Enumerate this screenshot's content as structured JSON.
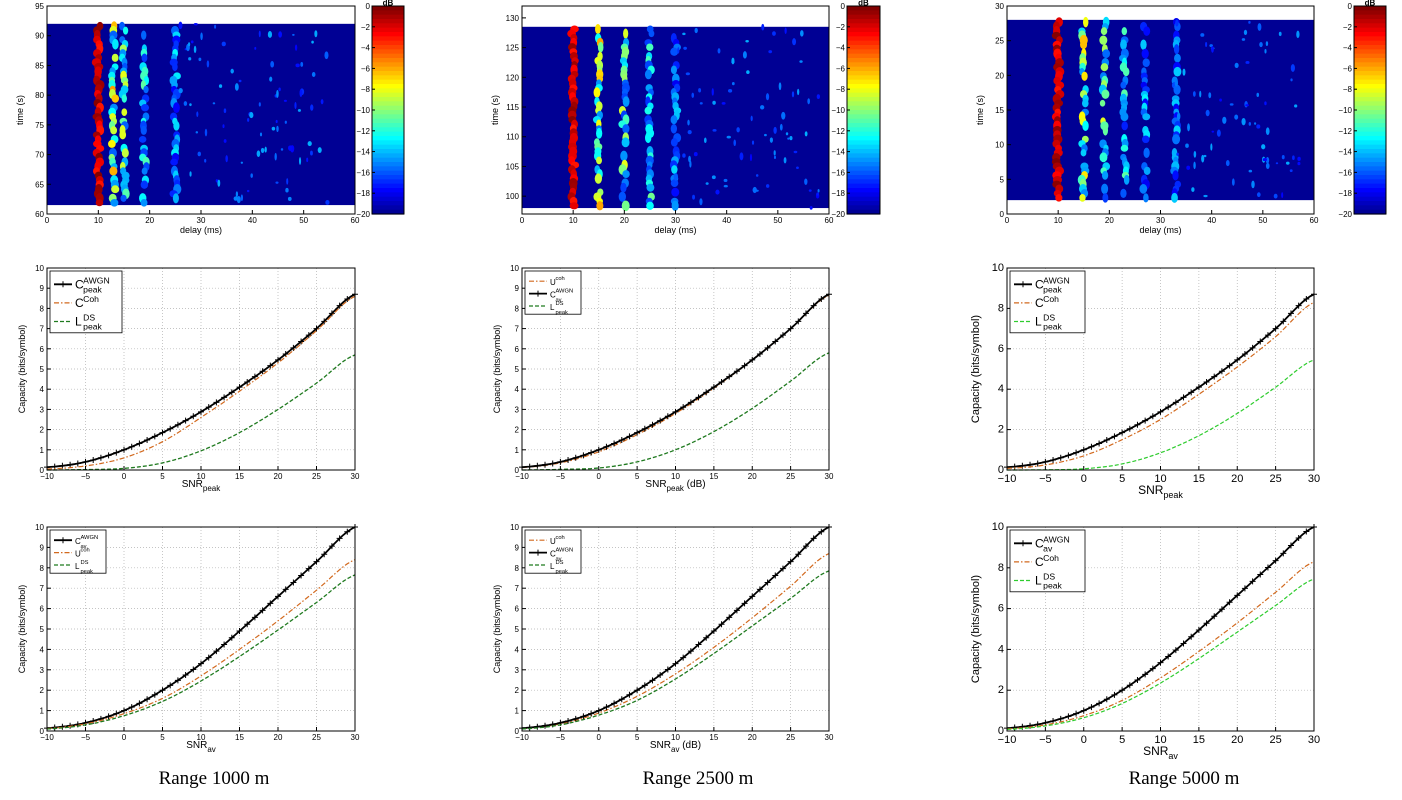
{
  "captions": [
    "Range 1000 m",
    "Range 2500 m",
    "Range 5000 m"
  ],
  "colors": {
    "black": "#000000",
    "orange": "#d2691e",
    "darkgreen": "#1f7a1f",
    "green": "#2ecc2e",
    "grid": "#b0b0b0"
  },
  "chart_data": [
    {
      "type": "heatmap",
      "panel": "r1c1",
      "xlabel": "delay (ms)",
      "ylabel": "time (s)",
      "xlim": [
        0,
        60
      ],
      "ylim": [
        60,
        95
      ],
      "xticks": [
        0,
        10,
        20,
        30,
        40,
        50,
        60
      ],
      "yticks": [
        60,
        65,
        70,
        75,
        80,
        85,
        90,
        95
      ],
      "colorbar_label": "dB",
      "colorbar_range": [
        -20,
        0
      ],
      "colorbar_ticks": [
        0,
        -2,
        -4,
        -6,
        -8,
        -10,
        -12,
        -14,
        -16,
        -18,
        -20
      ],
      "data_extent": {
        "delay": [
          0,
          60
        ],
        "time": [
          61.5,
          92
        ]
      },
      "arrivals_ms": [
        10,
        13,
        15,
        19,
        25
      ]
    },
    {
      "type": "heatmap",
      "panel": "r1c2",
      "xlabel": "delay (ms)",
      "ylabel": "time (s)",
      "xlim": [
        0,
        60
      ],
      "ylim": [
        97,
        132
      ],
      "xticks": [
        0,
        10,
        20,
        30,
        40,
        50,
        60
      ],
      "yticks": [
        100,
        105,
        110,
        115,
        120,
        125,
        130
      ],
      "colorbar_label": "dB",
      "colorbar_range": [
        -20,
        0
      ],
      "colorbar_ticks": [
        0,
        -2,
        -4,
        -6,
        -8,
        -10,
        -12,
        -14,
        -16,
        -18,
        -20
      ],
      "data_extent": {
        "delay": [
          0,
          60
        ],
        "time": [
          98,
          128.5
        ]
      },
      "arrivals_ms": [
        10,
        15,
        20,
        25,
        30
      ]
    },
    {
      "type": "heatmap",
      "panel": "r1c3",
      "xlabel": "delay (ms)",
      "ylabel": "time (s)",
      "xlim": [
        0,
        60
      ],
      "ylim": [
        0,
        30
      ],
      "xticks": [
        0,
        10,
        20,
        30,
        40,
        50,
        60
      ],
      "yticks": [
        0,
        5,
        10,
        15,
        20,
        25,
        30
      ],
      "colorbar_label": "dB",
      "colorbar_range": [
        -20,
        0
      ],
      "colorbar_ticks": [
        0,
        -2,
        -4,
        -6,
        -8,
        -10,
        -12,
        -14,
        -16,
        -18,
        -20
      ],
      "data_extent": {
        "delay": [
          0,
          60
        ],
        "time": [
          2,
          28
        ]
      },
      "arrivals_ms": [
        10,
        15,
        19,
        23,
        27,
        33
      ]
    },
    {
      "type": "line",
      "panel": "r2c1",
      "xlabel": "SNR",
      "xlabel_sub": "peak",
      "ylabel": "Capacity (bits/symbol)",
      "xlim": [
        -10,
        30
      ],
      "ylim": [
        0,
        10
      ],
      "xticks": [
        -10,
        -5,
        0,
        5,
        10,
        15,
        20,
        25,
        30
      ],
      "yticks": [
        0,
        1,
        2,
        3,
        4,
        5,
        6,
        7,
        8,
        9,
        10
      ],
      "x": [
        -10,
        -5,
        0,
        5,
        10,
        15,
        20,
        25,
        30
      ],
      "series": [
        {
          "name": "C",
          "sup": "AWGN",
          "sub": "peak",
          "style": "black-plus",
          "values": [
            0.14,
            0.4,
            1.0,
            1.85,
            2.88,
            4.1,
            5.45,
            7.0,
            8.7
          ]
        },
        {
          "name": "C",
          "sup": "Coh",
          "sub": "",
          "style": "orange-dashdot",
          "values": [
            0.05,
            0.2,
            0.6,
            1.4,
            2.6,
            3.9,
            5.3,
            6.9,
            8.6
          ]
        },
        {
          "name": "L",
          "sup": "DS",
          "sub": "peak",
          "style": "darkgreen-dashed",
          "values": [
            0.0,
            0.02,
            0.08,
            0.35,
            0.95,
            1.85,
            3.0,
            4.3,
            5.7
          ]
        }
      ]
    },
    {
      "type": "line",
      "panel": "r2c2",
      "xlabel": "SNR",
      "xlabel_sub": "peak",
      "xlabel_suffix": " (dB)",
      "ylabel": "Capacity (bits/symbol)",
      "xlim": [
        -10,
        30
      ],
      "ylim": [
        0,
        10
      ],
      "xticks": [
        -10,
        -5,
        0,
        5,
        10,
        15,
        20,
        25,
        30
      ],
      "yticks": [
        0,
        1,
        2,
        3,
        4,
        5,
        6,
        7,
        8,
        9,
        10
      ],
      "x": [
        -10,
        -5,
        0,
        5,
        10,
        15,
        20,
        25,
        30
      ],
      "series": [
        {
          "name": "U",
          "sup": "coh",
          "sub": "",
          "style": "orange-dashdot",
          "values": [
            0.12,
            0.35,
            0.9,
            1.75,
            2.8,
            4.05,
            5.45,
            7.0,
            8.65
          ]
        },
        {
          "name": "C",
          "sup": "AWGN",
          "sub": "av",
          "style": "black-plus",
          "values": [
            0.14,
            0.4,
            1.0,
            1.85,
            2.88,
            4.1,
            5.45,
            7.0,
            8.7
          ]
        },
        {
          "name": "L",
          "sup": "DS",
          "sub": "peak",
          "style": "darkgreen-dashed",
          "values": [
            0.0,
            0.03,
            0.1,
            0.4,
            1.0,
            1.9,
            3.05,
            4.4,
            5.8
          ]
        }
      ]
    },
    {
      "type": "line",
      "panel": "r2c3",
      "xlabel": "SNR",
      "xlabel_sub": "peak",
      "ylabel": "Capacity (bits/symbol)",
      "xlim": [
        -10,
        30
      ],
      "ylim": [
        0,
        10
      ],
      "xticks": [
        -10,
        -5,
        0,
        5,
        10,
        15,
        20,
        25,
        30
      ],
      "yticks": [
        0,
        2,
        4,
        6,
        8,
        10
      ],
      "x": [
        -10,
        -5,
        0,
        5,
        10,
        15,
        20,
        25,
        30
      ],
      "series": [
        {
          "name": "C",
          "sup": "AWGN",
          "sub": "peak",
          "style": "black-plus",
          "values": [
            0.14,
            0.4,
            1.0,
            1.85,
            2.88,
            4.1,
            5.45,
            7.0,
            8.7
          ]
        },
        {
          "name": "C",
          "sup": "Coh",
          "sub": "",
          "style": "orange-dashdot",
          "values": [
            0.08,
            0.25,
            0.7,
            1.5,
            2.5,
            3.75,
            5.1,
            6.6,
            8.3
          ]
        },
        {
          "name": "L",
          "sup": "DS",
          "sub": "peak",
          "style": "green-dashed",
          "values": [
            0.0,
            0.01,
            0.06,
            0.3,
            0.85,
            1.7,
            2.8,
            4.1,
            5.45
          ]
        }
      ]
    },
    {
      "type": "line",
      "panel": "r3c1",
      "xlabel": "SNR",
      "xlabel_sub": "av",
      "ylabel": "Capacity (bits/symbol)",
      "xlim": [
        -10,
        30
      ],
      "ylim": [
        0,
        10
      ],
      "xticks": [
        -10,
        -5,
        0,
        5,
        10,
        15,
        20,
        25,
        30
      ],
      "yticks": [
        0,
        1,
        2,
        3,
        4,
        5,
        6,
        7,
        8,
        9,
        10
      ],
      "x": [
        -10,
        -5,
        0,
        5,
        10,
        15,
        20,
        25,
        30
      ],
      "series": [
        {
          "name": "C",
          "sup": "AWGN",
          "sub": "av",
          "style": "black-plus",
          "values": [
            0.14,
            0.4,
            1.0,
            2.0,
            3.3,
            4.9,
            6.6,
            8.3,
            10.0
          ]
        },
        {
          "name": "U",
          "sup": "coh",
          "sub": "",
          "style": "orange-dashdot",
          "values": [
            0.12,
            0.35,
            0.85,
            1.6,
            2.7,
            4.0,
            5.4,
            6.9,
            8.4
          ]
        },
        {
          "name": "L",
          "sup": "DS",
          "sub": "peak",
          "style": "darkgreen-dashed",
          "values": [
            0.1,
            0.3,
            0.75,
            1.45,
            2.45,
            3.65,
            4.95,
            6.3,
            7.65
          ]
        }
      ]
    },
    {
      "type": "line",
      "panel": "r3c2",
      "xlabel": "SNR",
      "xlabel_sub": "av",
      "xlabel_suffix": " (dB)",
      "ylabel": "Capacity (bits/symbol)",
      "xlim": [
        -10,
        30
      ],
      "ylim": [
        0,
        10
      ],
      "xticks": [
        -10,
        -5,
        0,
        5,
        10,
        15,
        20,
        25,
        30
      ],
      "yticks": [
        0,
        1,
        2,
        3,
        4,
        5,
        6,
        7,
        8,
        9,
        10
      ],
      "x": [
        -10,
        -5,
        0,
        5,
        10,
        15,
        20,
        25,
        30
      ],
      "series": [
        {
          "name": "U",
          "sup": "coh",
          "sub": "",
          "style": "orange-dashdot",
          "values": [
            0.12,
            0.35,
            0.88,
            1.7,
            2.8,
            4.1,
            5.55,
            7.1,
            8.7
          ]
        },
        {
          "name": "C",
          "sup": "AWGN",
          "sub": "av",
          "style": "black-plus",
          "values": [
            0.14,
            0.4,
            1.0,
            2.0,
            3.3,
            4.9,
            6.6,
            8.3,
            10.0
          ]
        },
        {
          "name": "L",
          "sup": "DS",
          "sub": "peak",
          "style": "darkgreen-dashed",
          "values": [
            0.1,
            0.3,
            0.78,
            1.5,
            2.55,
            3.8,
            5.15,
            6.5,
            7.85
          ]
        }
      ]
    },
    {
      "type": "line",
      "panel": "r3c3",
      "xlabel": "SNR",
      "xlabel_sub": "av",
      "ylabel": "Capacity (bits/symbol)",
      "xlim": [
        -10,
        30
      ],
      "ylim": [
        0,
        10
      ],
      "xticks": [
        -10,
        -5,
        0,
        5,
        10,
        15,
        20,
        25,
        30
      ],
      "yticks": [
        0,
        2,
        4,
        6,
        8,
        10
      ],
      "x": [
        -10,
        -5,
        0,
        5,
        10,
        15,
        20,
        25,
        30
      ],
      "series": [
        {
          "name": "C",
          "sup": "AWGN",
          "sub": "av",
          "style": "black-plus",
          "values": [
            0.14,
            0.4,
            1.0,
            2.0,
            3.35,
            4.95,
            6.65,
            8.35,
            10.0
          ]
        },
        {
          "name": "C",
          "sup": "Coh",
          "sub": "",
          "style": "orange-dashdot",
          "values": [
            0.1,
            0.3,
            0.75,
            1.5,
            2.6,
            3.9,
            5.3,
            6.8,
            8.3
          ]
        },
        {
          "name": "L",
          "sup": "DS",
          "sub": "peak",
          "style": "green-dashed",
          "values": [
            0.08,
            0.25,
            0.65,
            1.35,
            2.35,
            3.55,
            4.85,
            6.15,
            7.45
          ]
        }
      ]
    }
  ]
}
